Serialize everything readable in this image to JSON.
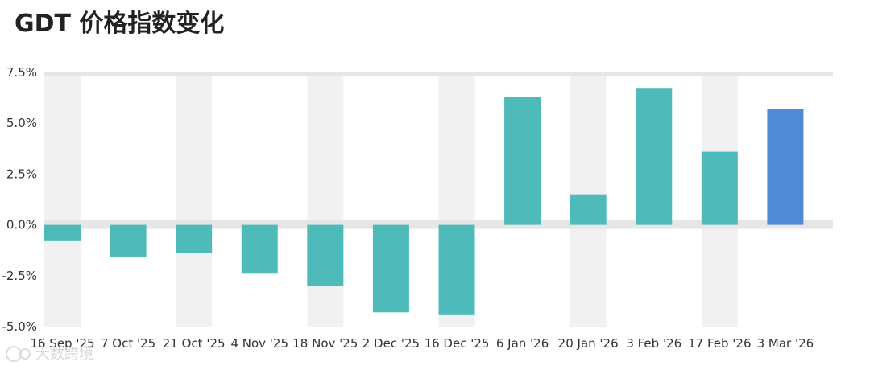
{
  "header": {
    "title": "GDT 价格指数变化"
  },
  "chart_data": {
    "type": "bar",
    "categories": [
      "16 Sep '25",
      "7 Oct '25",
      "21 Oct '25",
      "4 Nov '25",
      "18 Nov '25",
      "2 Dec '25",
      "16 Dec '25",
      "6 Jan '26",
      "20 Jan '26",
      "3 Feb '26",
      "17 Feb '26",
      "3 Mar '26"
    ],
    "values": [
      -0.8,
      -1.6,
      -1.4,
      -2.4,
      -3.0,
      -4.3,
      -4.4,
      6.3,
      1.5,
      6.7,
      3.6,
      5.7
    ],
    "highlight_index": 11,
    "ylim": [
      -5.0,
      7.5
    ],
    "yticks": [
      7.5,
      5.0,
      2.5,
      0.0,
      -2.5,
      -5.0
    ],
    "ytick_labels": [
      "7.5%",
      "5.0%",
      "2.5%",
      "0.0%",
      "-2.5%",
      "-5.0%"
    ],
    "grid": true,
    "zero_band": true,
    "colors": {
      "bar": "#4ebaba",
      "highlight_bar": "#4f8ad4",
      "column_band": "#f1f1f1",
      "zero_band": "#e6e6e6",
      "top_band": "#e6e6e6",
      "axis_text": "#333333"
    }
  },
  "watermark": {
    "text": "大数跨境"
  }
}
